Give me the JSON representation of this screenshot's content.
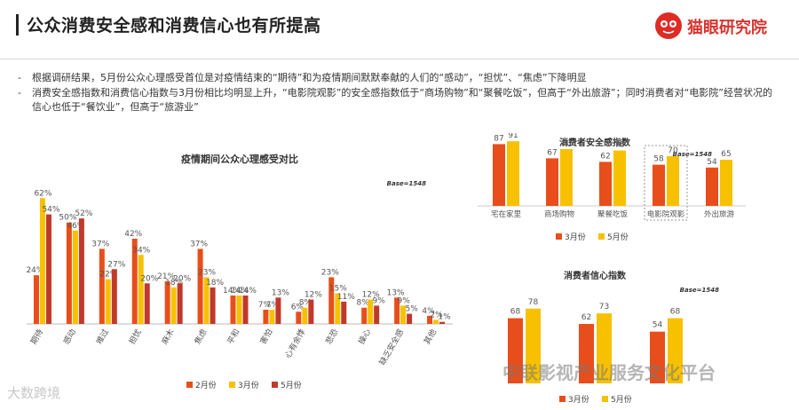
{
  "header": {
    "title": "公众消费安全感和消费信心也有所提高",
    "brand": "猫眼研究院"
  },
  "bullets": [
    "根据调研结果，5月份公众心理感受首位是对疫情结束的“期待”和为疫情期间默默奉献的人们的“感动”，“担忧”、“焦虑”下降明显",
    "消费安全感指数和消费信心指数与3月份相比均明显上升，“电影院观影”的安全感指数低于“商场购物”和“聚餐吃饭”，但高于“外出旅游”；同时消费者对“电影院”经营状况的信心也低于“餐饮业”，但高于“旅游业”"
  ],
  "colors": {
    "feb": "#e84e1b",
    "mar": "#f7c100",
    "may": "#c0392b",
    "brand": "#d9322c"
  },
  "watermarks": {
    "left": "大数跨境",
    "right": "中联影视产业服务文化平台"
  },
  "chart_data": [
    {
      "type": "bar",
      "title": "疫情期间公众心理感受对比",
      "base": "Base=1548",
      "categories": [
        "期待",
        "感动",
        "难过",
        "担忧",
        "麻木",
        "焦虑",
        "平和",
        "害怕",
        "心有余悸",
        "悲恐",
        "操心",
        "缺乏安全感",
        "其他"
      ],
      "series": [
        {
          "name": "2月份",
          "values": [
            24,
            50,
            37,
            42,
            21,
            37,
            14,
            7,
            6,
            23,
            8,
            13,
            4
          ]
        },
        {
          "name": "3月份",
          "values": [
            62,
            46,
            22,
            34,
            18,
            23,
            14,
            7,
            8,
            15,
            12,
            9,
            2
          ]
        },
        {
          "name": "5月份",
          "values": [
            54,
            52,
            27,
            20,
            20,
            18,
            14,
            13,
            12,
            11,
            9,
            5,
            1
          ]
        }
      ],
      "ylim": [
        0,
        70
      ],
      "legend": "bottom"
    },
    {
      "type": "bar",
      "title": "消费者安全感指数",
      "base": "Base=1548",
      "categories": [
        "宅在家里",
        "商场购物",
        "聚餐吃饭",
        "电影院观影",
        "外出旅游"
      ],
      "highlight": "电影院观影",
      "series": [
        {
          "name": "3月份",
          "values": [
            87,
            67,
            62,
            58,
            54
          ]
        },
        {
          "name": "5月份",
          "values": [
            91,
            80,
            78,
            70,
            65
          ]
        }
      ],
      "ylim": [
        0,
        100
      ],
      "legend": "bottom"
    },
    {
      "type": "bar",
      "title": "消费者信心指数",
      "base": "Base=1548",
      "categories": [
        "",
        "",
        ""
      ],
      "series": [
        {
          "name": "3月份",
          "values": [
            68,
            62,
            54
          ]
        },
        {
          "name": "5月份",
          "values": [
            78,
            73,
            68
          ]
        }
      ],
      "ylim": [
        0,
        100
      ],
      "legend": "bottom"
    }
  ]
}
